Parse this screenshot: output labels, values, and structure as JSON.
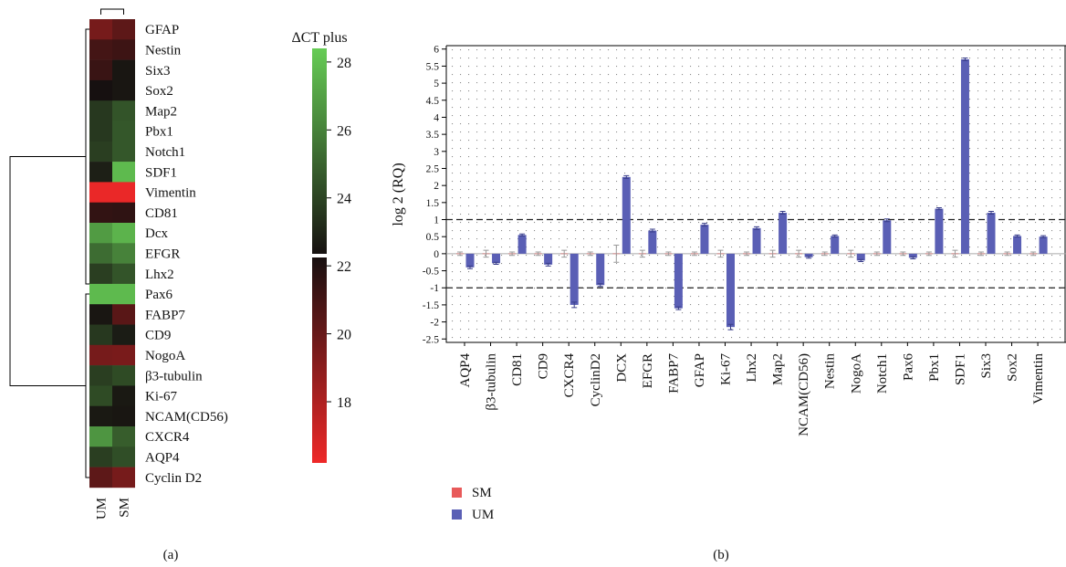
{
  "panel_a_label": "(a)",
  "panel_b_label": "(b)",
  "chart_data": [
    {
      "type": "heatmap",
      "panel": "(a)",
      "rows": [
        "GFAP",
        "Nestin",
        "Six3",
        "Sox2",
        "Map2",
        "Pbx1",
        "Notch1",
        "SDF1",
        "Vimentin",
        "CD81",
        "Dcx",
        "EFGR",
        "Lhx2",
        "Pax6",
        "FABP7",
        "CD9",
        "NogoA",
        "β3-tubulin",
        "Ki-67",
        "NCAM(CD56)",
        "CXCR4",
        "AQP4",
        "Cyclin D2"
      ],
      "columns": [
        "UM",
        "SM"
      ],
      "values": [
        [
          19.6,
          20.3
        ],
        [
          21.0,
          21.2
        ],
        [
          21.3,
          22.5
        ],
        [
          22.3,
          22.5
        ],
        [
          23.6,
          24.5
        ],
        [
          23.6,
          24.6
        ],
        [
          23.8,
          24.6
        ],
        [
          22.8,
          27.8
        ],
        [
          16.3,
          16.3
        ],
        [
          21.5,
          21.6
        ],
        [
          26.8,
          27.6
        ],
        [
          25.3,
          26.0
        ],
        [
          23.8,
          24.5
        ],
        [
          27.8,
          27.8
        ],
        [
          22.5,
          20.4
        ],
        [
          23.6,
          22.7
        ],
        [
          19.6,
          19.5
        ],
        [
          23.8,
          24.2
        ],
        [
          24.2,
          22.6
        ],
        [
          22.6,
          22.5
        ],
        [
          26.6,
          24.8
        ],
        [
          23.8,
          24.3
        ],
        [
          20.3,
          19.6
        ]
      ],
      "colorbar": {
        "title": "ΔCT plus",
        "min": 16.2,
        "max": 28.4,
        "ticks": [
          18,
          20,
          22,
          24,
          26,
          28
        ],
        "colors": [
          "#ee2828",
          "#161010",
          "#66cc55"
        ]
      }
    },
    {
      "type": "bar",
      "panel": "(b)",
      "ylabel": "log 2 (RQ)",
      "ylim": [
        -2.6,
        6.1
      ],
      "yticks": [
        "-2.5",
        "-2",
        "-1.5",
        "-1",
        "-0.5",
        "0",
        "0.5",
        "1",
        "1.5",
        "2",
        "2.5",
        "3",
        "3.5",
        "4",
        "4.5",
        "5",
        "5.5",
        "6"
      ],
      "reference_lines": [
        1,
        -1
      ],
      "grid": true,
      "legend_position": "bottom-left",
      "categories": [
        "AQP4",
        "β3-tubulin",
        "CD81",
        "CD9",
        "CXCR4",
        "CyclinD2",
        "DCX",
        "EFGR",
        "FABP7",
        "GFAP",
        "Ki-67",
        "Lhx2",
        "Map2",
        "NCAM(CD56)",
        "Nestin",
        "NogoA",
        "Notch1",
        "Pax6",
        "Pbx1",
        "SDF1",
        "Six3",
        "Sox2",
        "Vimentin"
      ],
      "series": [
        {
          "name": "SM",
          "color": "#e85a5a",
          "values": [
            0,
            0,
            0,
            0,
            0,
            0,
            0,
            0,
            0,
            0,
            0,
            0,
            0,
            0,
            0,
            0,
            0,
            0,
            0,
            0,
            0,
            0,
            0
          ],
          "errors": [
            0.05,
            0.1,
            0.05,
            0.05,
            0.1,
            0.05,
            0.25,
            0.1,
            0.05,
            0.05,
            0.1,
            0.05,
            0.1,
            0.1,
            0.05,
            0.1,
            0.05,
            0.05,
            0.05,
            0.1,
            0.05,
            0.05,
            0.05
          ]
        },
        {
          "name": "UM",
          "color": "#5a5fb5",
          "values": [
            -0.4,
            -0.28,
            0.55,
            -0.32,
            -1.5,
            -0.92,
            2.25,
            0.68,
            -1.6,
            0.85,
            -2.15,
            0.75,
            1.2,
            -0.1,
            0.52,
            -0.2,
            0.98,
            -0.12,
            1.32,
            5.7,
            1.2,
            0.52,
            0.5
          ],
          "errors": [
            0.04,
            0.03,
            0.03,
            0.04,
            0.08,
            0.04,
            0.04,
            0.04,
            0.04,
            0.04,
            0.08,
            0.04,
            0.04,
            0.03,
            0.03,
            0.03,
            0.04,
            0.03,
            0.03,
            0.04,
            0.04,
            0.03,
            0.03
          ]
        }
      ]
    }
  ]
}
